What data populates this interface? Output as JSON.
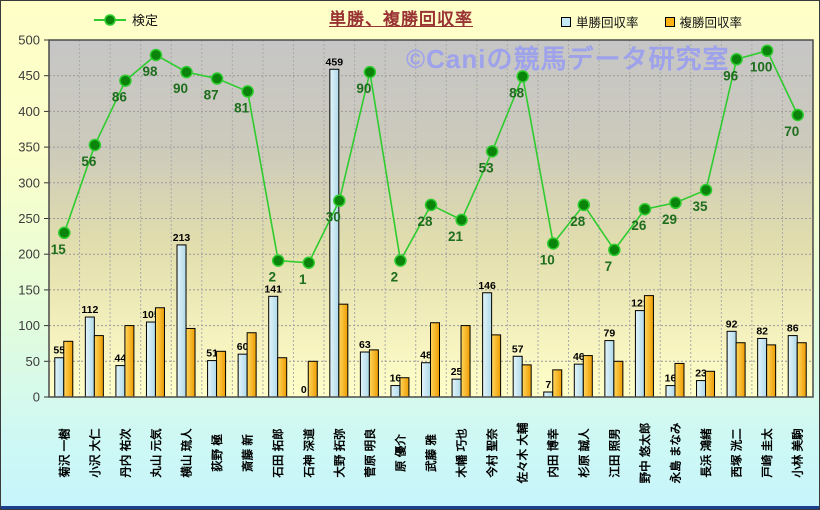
{
  "title": "単勝、複勝回収率",
  "watermark": "©Caniの競馬データ研究室",
  "legend": {
    "line_label": "検定",
    "bar1_label": "単勝回収率",
    "bar2_label": "複勝回収率"
  },
  "colors": {
    "title": "#993333",
    "watermark": "#9B9FEF",
    "line": "#2FCC2F",
    "marker_fill": "#0A840A",
    "line_label": "#1E6E1E",
    "bar_win_fill": "#C6E8F2",
    "bar_place_fill": "#FFB414",
    "plot_top": "#C6C6C6",
    "plot_bottom": "#FFFFC9"
  },
  "chart_data": {
    "type": "bar",
    "title": "単勝、複勝回収率",
    "categories": [
      "菊沢 一樹",
      "小沢 大仁",
      "丹内 祐次",
      "丸山 元気",
      "横山 琉人",
      "荻野 極",
      "斎藤 新",
      "石田 拓郎",
      "石神 深道",
      "大野 拓弥",
      "菅原 明良",
      "原 優介",
      "武藤 雅",
      "木幡 巧也",
      "今村 聖奈",
      "佐々木 大輔",
      "内田 博幸",
      "杉原 誠人",
      "江田 照男",
      "野中 悠太郎",
      "永島 まなみ",
      "長浜 鴻緒",
      "西塚 洸二",
      "戸崎 圭太",
      "小林 美駒"
    ],
    "series": [
      {
        "name": "単勝回収率",
        "type": "bar",
        "labeled": true,
        "values": [
          55,
          112,
          44,
          105,
          213,
          51,
          60,
          141,
          0,
          459,
          63,
          16,
          48,
          25,
          146,
          57,
          7,
          46,
          79,
          121,
          16,
          23,
          92,
          82,
          86
        ]
      },
      {
        "name": "複勝回収率",
        "type": "bar",
        "labeled": false,
        "values": [
          78,
          86,
          100,
          125,
          96,
          64,
          90,
          55,
          50,
          130,
          66,
          27,
          104,
          100,
          87,
          45,
          38,
          58,
          50,
          142,
          47,
          36,
          76,
          73,
          76
        ]
      },
      {
        "name": "検定",
        "type": "line",
        "labeled": true,
        "values": [
          15,
          56,
          86,
          98,
          90,
          87,
          81,
          2,
          1,
          30,
          90,
          2,
          28,
          21,
          53,
          88,
          10,
          28,
          7,
          26,
          29,
          35,
          96,
          100,
          70
        ],
        "plot_hint": {
          "note": "line is drawn on the left axis at scale*value+offset",
          "scale": 3,
          "offset": 185
        }
      }
    ],
    "ylabel": "",
    "xlabel": "",
    "ylim": [
      0,
      500
    ],
    "yticks": [
      0,
      50,
      100,
      150,
      200,
      250,
      300,
      350,
      400,
      450,
      500
    ],
    "grid": true,
    "legend_position": "top"
  }
}
